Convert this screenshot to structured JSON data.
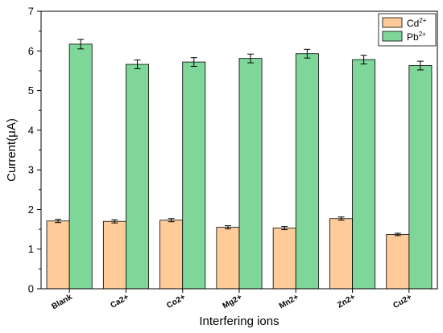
{
  "chart_data": {
    "type": "bar",
    "xlabel": "Interfering ions",
    "ylabel": "Current(μA)",
    "ylim": [
      0,
      7
    ],
    "yticks": [
      0,
      1,
      2,
      3,
      4,
      5,
      6,
      7
    ],
    "grid": false,
    "legend_position": "top-right",
    "categories": [
      "Blank",
      "Ca2+",
      "Co2+",
      "Mg2+",
      "Mn2+",
      "Zn2+",
      "Cu2+"
    ],
    "series": [
      {
        "name_base": "Cd",
        "name_sup": "2+",
        "color": "#FFCC99",
        "values": [
          1.71,
          1.7,
          1.73,
          1.55,
          1.53,
          1.77,
          1.37
        ],
        "errors": [
          0.04,
          0.04,
          0.04,
          0.04,
          0.04,
          0.04,
          0.03
        ]
      },
      {
        "name_base": "Pb",
        "name_sup": "2+",
        "color": "#7FD699",
        "values": [
          6.17,
          5.66,
          5.72,
          5.81,
          5.93,
          5.78,
          5.63
        ],
        "errors": [
          0.12,
          0.11,
          0.11,
          0.11,
          0.11,
          0.11,
          0.11
        ]
      }
    ]
  }
}
